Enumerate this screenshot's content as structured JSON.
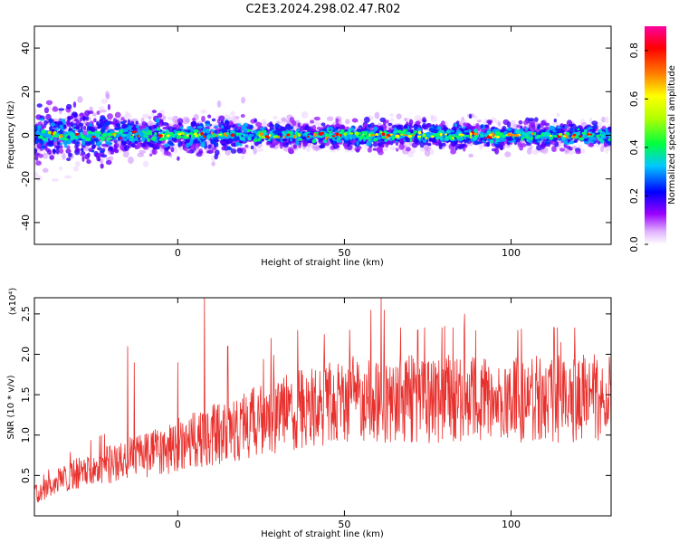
{
  "title": "C2E3.2024.298.02.47.R02",
  "chart_data": [
    {
      "type": "heatmap",
      "xlabel": "Height of straight line (km)",
      "ylabel": "Frequency (Hz)",
      "xlim": [
        -43,
        130
      ],
      "ylim": [
        -50,
        50
      ],
      "xticks": [
        "0",
        "50",
        "100"
      ],
      "xtick_values": [
        0,
        50,
        100
      ],
      "yticks": [
        "-40",
        "-20",
        "0",
        "20",
        "40"
      ],
      "ytick_values": [
        -40,
        -20,
        0,
        20,
        40
      ],
      "grid": false,
      "ridge_center_hz": 0,
      "colorbar": {
        "label": "Normalized spectral amplitude",
        "range": [
          0,
          0.9
        ],
        "ticks": [
          "0.0",
          "0.2",
          "0.4",
          "0.6",
          "0.8"
        ],
        "tick_values": [
          0.0,
          0.2,
          0.4,
          0.6,
          0.8
        ]
      }
    },
    {
      "type": "line",
      "xlabel": "Height of straight line (km)",
      "ylabel": "SNR (10 * v/v)",
      "y_multiplier_label": "(x10⁴)",
      "xlim": [
        -43,
        130
      ],
      "ylim": [
        0,
        2.7
      ],
      "xticks": [
        "0",
        "50",
        "100"
      ],
      "xtick_values": [
        0,
        50,
        100
      ],
      "yticks": [
        "0.5",
        "1.0",
        "1.5",
        "2.0",
        "2.5"
      ],
      "ytick_values": [
        0.5,
        1.0,
        1.5,
        2.0,
        2.5
      ],
      "grid": false,
      "series": [
        {
          "color": "#e8302d",
          "trend": {
            "x": [
              -43,
              -35,
              -25,
              -15,
              -5,
              5,
              15,
              25,
              35,
              45,
              55,
              65,
              75,
              85,
              95,
              105,
              115,
              125,
              130
            ],
            "y": [
              0.25,
              0.45,
              0.6,
              0.7,
              0.8,
              0.95,
              1.05,
              1.2,
              1.3,
              1.4,
              1.45,
              1.45,
              1.45,
              1.45,
              1.4,
              1.45,
              1.45,
              1.45,
              1.45
            ]
          },
          "spikes": {
            "x": [
              -15,
              -13,
              0,
              8,
              15,
              28,
              36,
              44,
              58,
              61,
              62,
              72,
              80,
              86,
              102,
              115,
              125
            ],
            "y": [
              2.1,
              1.9,
              1.9,
              2.7,
              2.1,
              2.2,
              2.3,
              2.25,
              2.55,
              2.7,
              2.55,
              2.3,
              2.35,
              2.5,
              2.3,
              2.15,
              2.0
            ]
          }
        }
      ]
    }
  ]
}
